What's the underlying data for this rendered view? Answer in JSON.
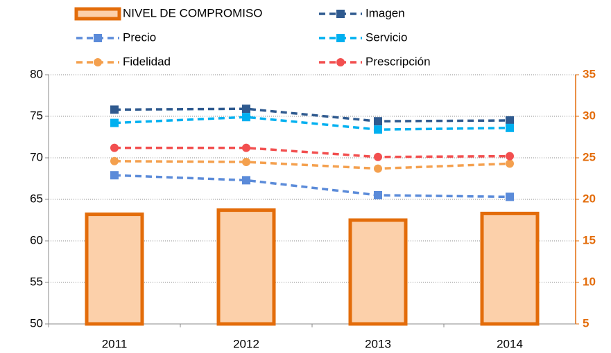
{
  "chart_data": {
    "type": "bar_line",
    "categories": [
      "2011",
      "2012",
      "2013",
      "2014"
    ],
    "ylim": [
      50,
      80
    ],
    "yticks": [
      50,
      55,
      60,
      65,
      70,
      75,
      80
    ],
    "y2lim": [
      5,
      35
    ],
    "y2ticks": [
      5,
      10,
      15,
      20,
      25,
      30,
      35
    ],
    "grid": true,
    "series": [
      {
        "name": "NIVEL DE COMPROMISO",
        "type": "bar",
        "axis": "y2",
        "color": "#fcd0aa",
        "edge_color": "#e36c0a",
        "values": [
          18.2,
          18.7,
          17.5,
          18.3
        ]
      },
      {
        "name": "Imagen",
        "type": "line",
        "marker": "square",
        "color": "#2f5a8f",
        "values": [
          75.8,
          75.9,
          74.4,
          74.5
        ]
      },
      {
        "name": "Precio",
        "type": "line",
        "marker": "square",
        "color": "#5b8bd9",
        "values": [
          67.9,
          67.3,
          65.5,
          65.3
        ]
      },
      {
        "name": "Servicio",
        "type": "line",
        "marker": "square",
        "color": "#00b0f0",
        "values": [
          74.2,
          74.9,
          73.4,
          73.6
        ]
      },
      {
        "name": "Fidelidad",
        "type": "line",
        "marker": "circle",
        "color": "#f4a04e",
        "values": [
          69.6,
          69.5,
          68.7,
          69.3
        ]
      },
      {
        "name": "Prescripción",
        "type": "line",
        "marker": "circle",
        "color": "#f24f4f",
        "values": [
          71.2,
          71.2,
          70.1,
          70.2
        ]
      }
    ]
  }
}
